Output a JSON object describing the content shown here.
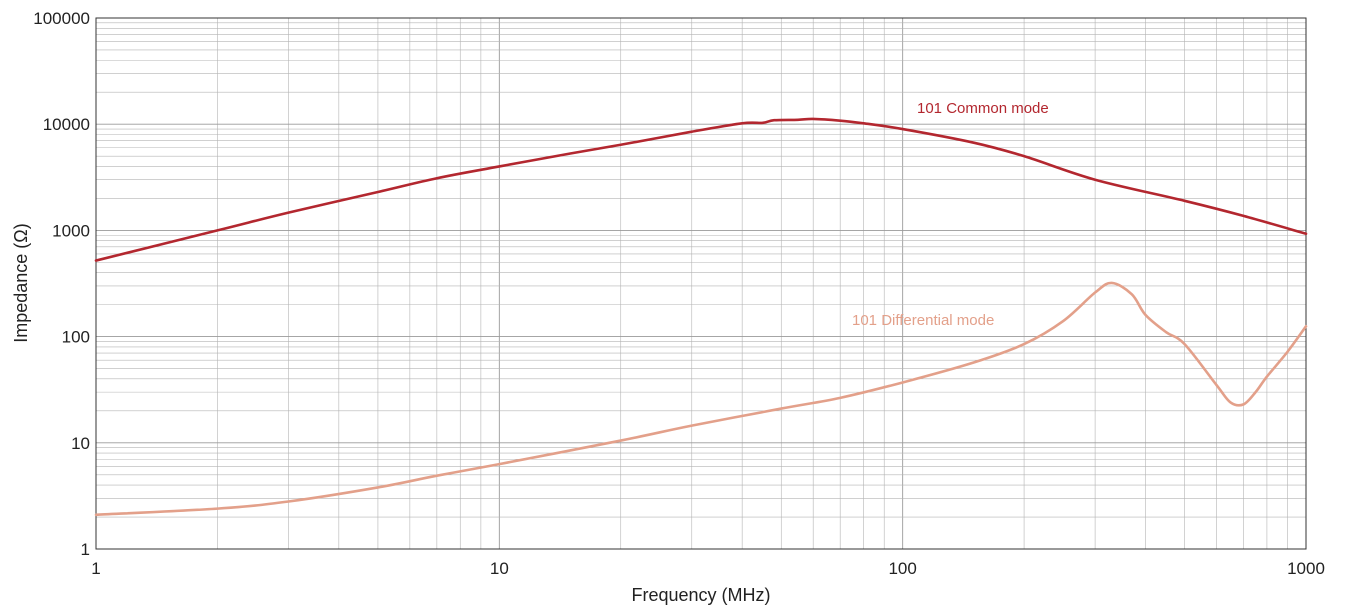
{
  "chart_data": {
    "type": "line",
    "title": "",
    "xlabel": "Frequency (MHz)",
    "ylabel": "Impedance (Ω)",
    "xscale": "log",
    "yscale": "log",
    "xlim": [
      1,
      1000
    ],
    "ylim": [
      1,
      100000
    ],
    "grid": true,
    "x_ticks": [
      "1",
      "10",
      "100",
      "1000"
    ],
    "y_ticks": [
      "1",
      "10",
      "100",
      "1000",
      "10000",
      "100000"
    ],
    "series": [
      {
        "name": "101 Common mode",
        "color": "#b3272f",
        "x": [
          1,
          2,
          3,
          5,
          7,
          10,
          15,
          20,
          30,
          40,
          45,
          48,
          55,
          60,
          70,
          80,
          100,
          150,
          200,
          300,
          500,
          700,
          1000
        ],
        "y": [
          520,
          1000,
          1470,
          2300,
          3100,
          4000,
          5300,
          6400,
          8500,
          10200,
          10300,
          10900,
          11000,
          11200,
          10800,
          10200,
          9000,
          6700,
          5000,
          3000,
          1900,
          1370,
          930
        ]
      },
      {
        "name": "101 Differential mode",
        "color": "#e3a08a",
        "x": [
          1,
          2,
          3,
          5,
          7,
          10,
          20,
          30,
          50,
          70,
          100,
          150,
          200,
          250,
          300,
          330,
          370,
          400,
          450,
          500,
          600,
          650,
          700,
          750,
          800,
          900,
          1000
        ],
        "y": [
          2.1,
          2.4,
          2.8,
          3.8,
          4.9,
          6.3,
          10.5,
          14.5,
          21,
          26.5,
          37,
          57,
          85,
          140,
          260,
          320,
          250,
          160,
          110,
          85,
          35,
          24,
          23,
          30,
          42,
          72,
          125
        ]
      }
    ]
  }
}
